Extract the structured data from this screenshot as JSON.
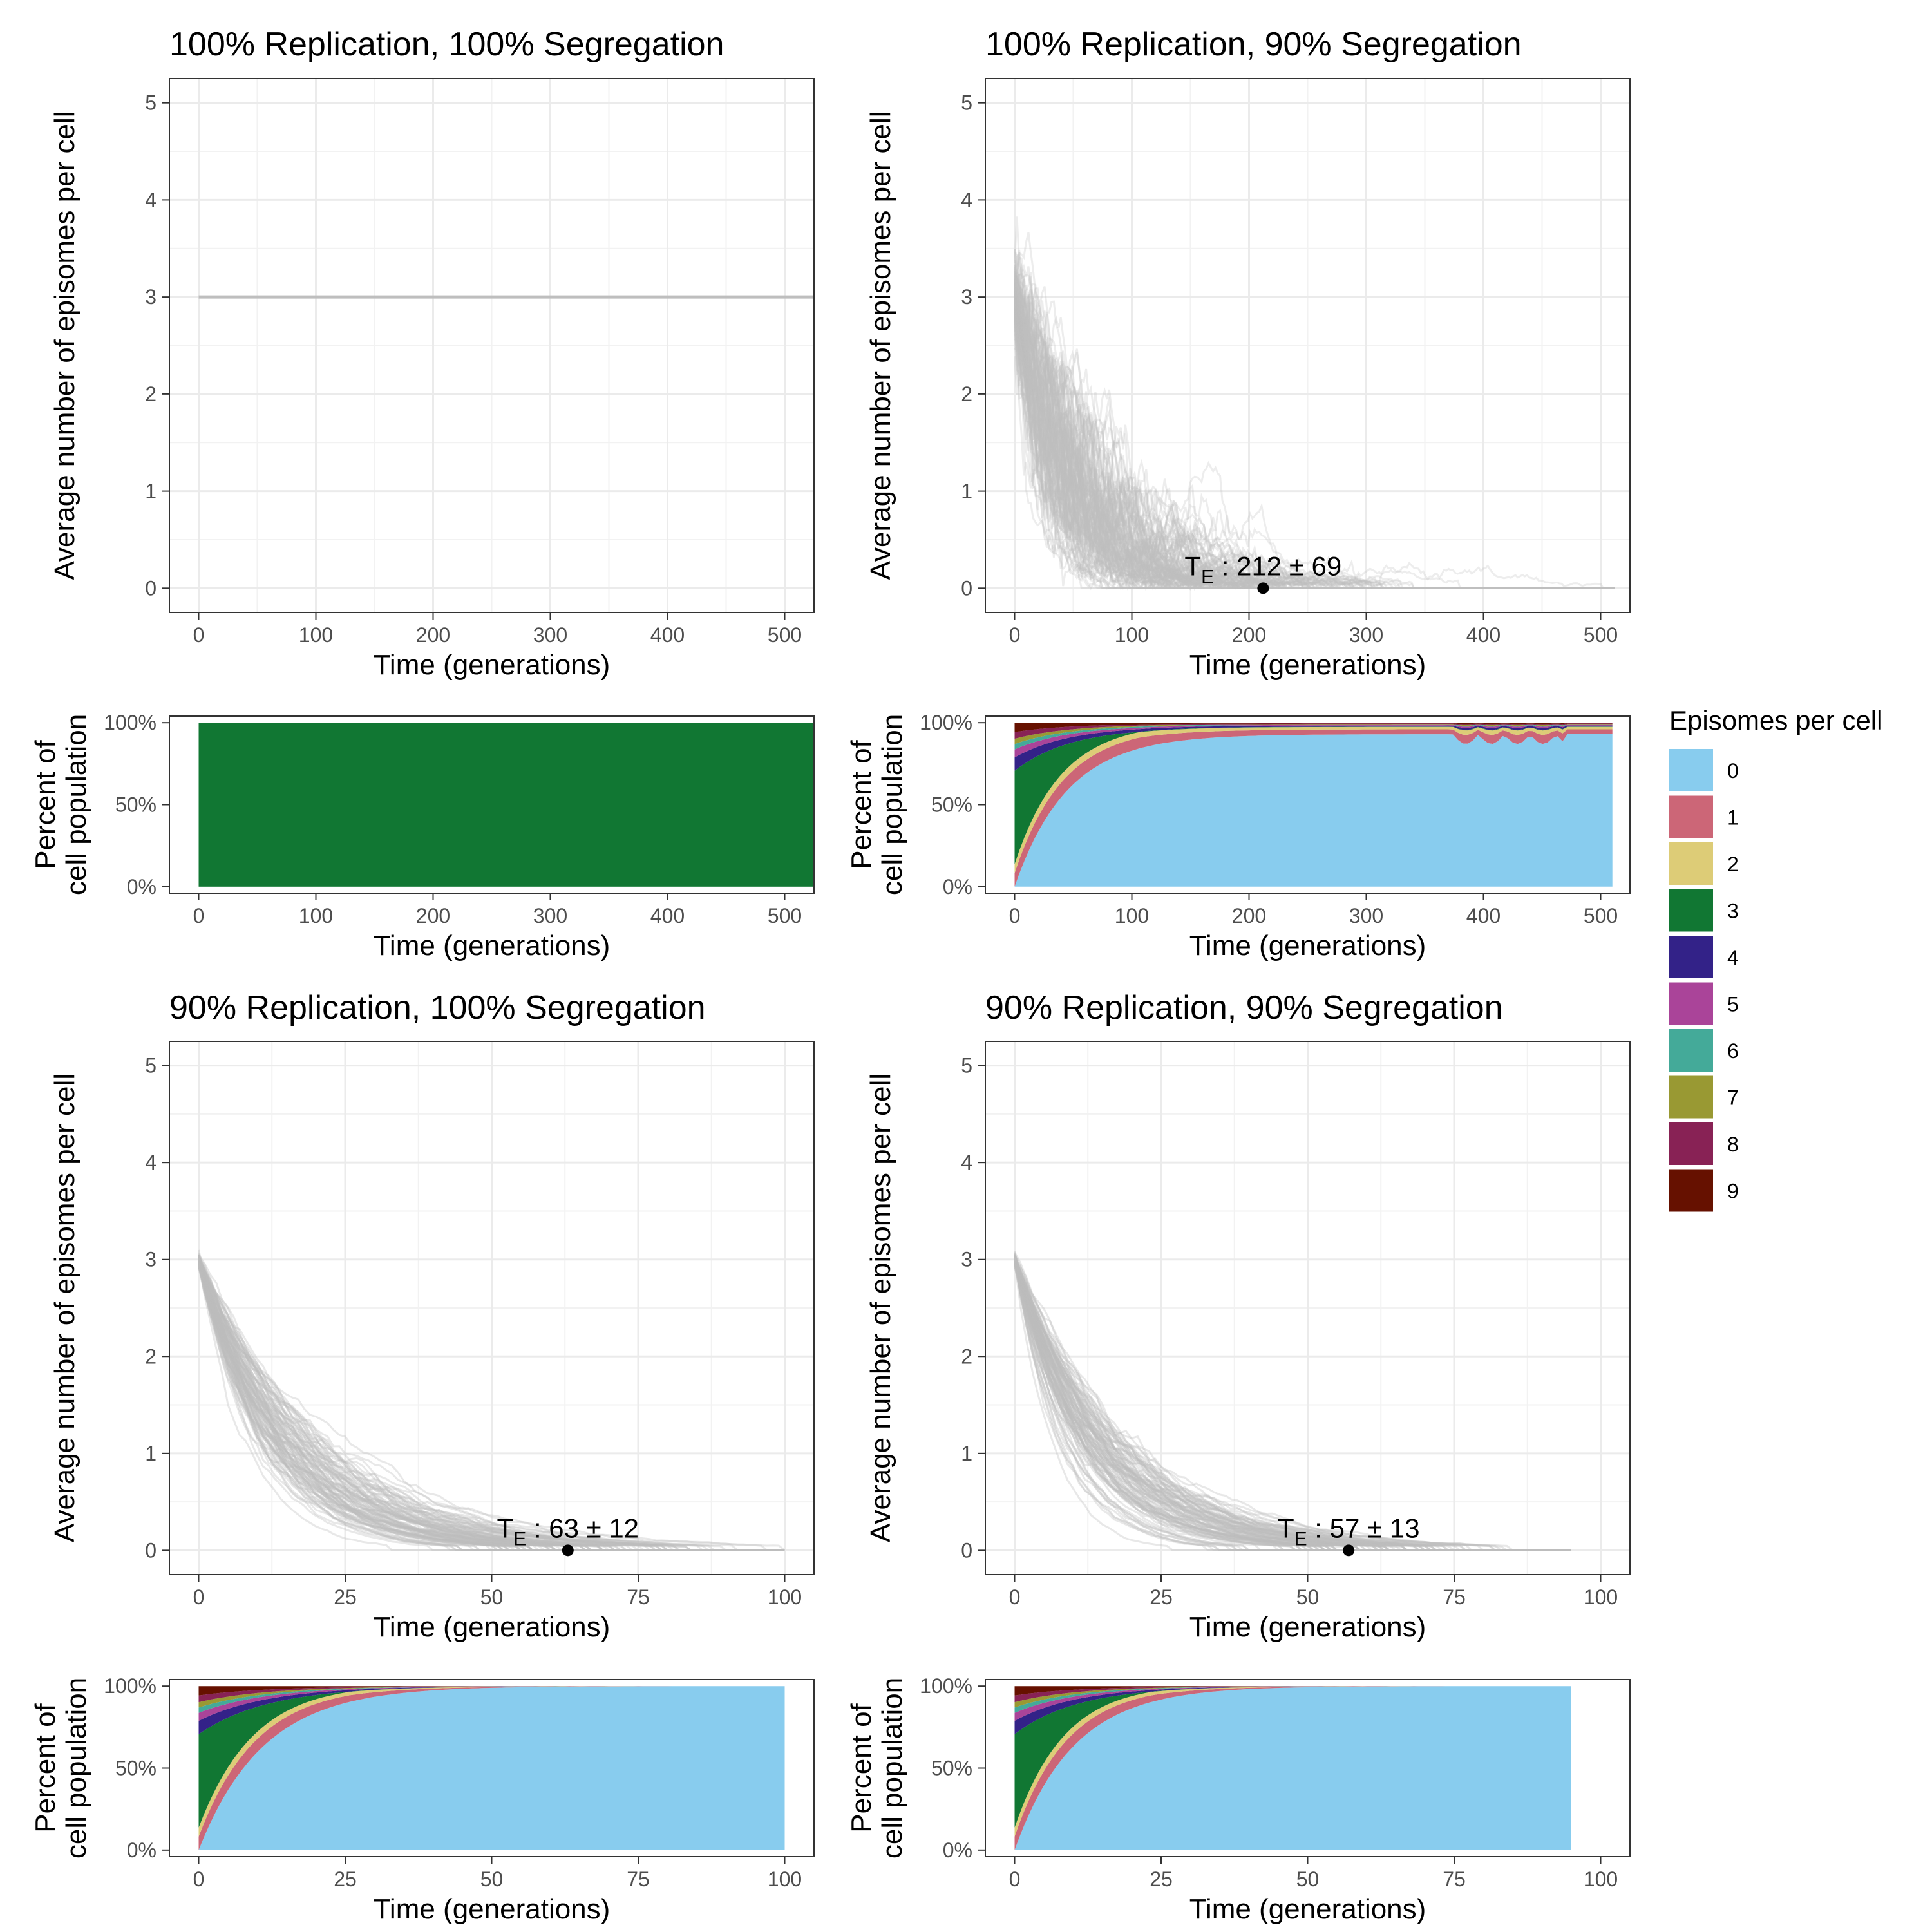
{
  "chart_data": [
    {
      "id": "p1_line",
      "type": "line",
      "title": "100% Replication, 100% Segregation",
      "xlabel": "Time (generations)",
      "ylabel": "Average number of episomes per cell",
      "xlim": [
        -25,
        525
      ],
      "ylim": [
        -0.25,
        5.25
      ],
      "xticks": [
        0,
        100,
        200,
        300,
        400,
        500
      ],
      "yticks": [
        0,
        1,
        2,
        3,
        4,
        5
      ],
      "grid": true,
      "series_summary": {
        "kind": "constant",
        "value": 3,
        "x_end": 525
      }
    },
    {
      "id": "p1_area",
      "type": "area",
      "xlabel": "Time (generations)",
      "ylabel": [
        "Percent of",
        "cell population"
      ],
      "xlim": [
        -25,
        525
      ],
      "ylim": [
        -4,
        104
      ],
      "xticks": [
        0,
        100,
        200,
        300,
        400,
        500
      ],
      "yticks": [
        "0%",
        "50%",
        "100%"
      ],
      "composition": {
        "kind": "constant",
        "category": "3",
        "x_end": 525
      }
    },
    {
      "id": "p2_line",
      "type": "line",
      "title": "100% Replication, 90% Segregation",
      "xlabel": "Time (generations)",
      "ylabel": "Average number of episomes per cell",
      "xlim": [
        -25,
        525
      ],
      "ylim": [
        -0.25,
        5.25
      ],
      "xticks": [
        0,
        100,
        200,
        300,
        400,
        500
      ],
      "yticks": [
        0,
        1,
        2,
        3,
        4,
        5
      ],
      "grid": true,
      "series_summary": {
        "kind": "decay",
        "start": 3,
        "mean_extinction": 212,
        "sd": 69,
        "x_end": 512,
        "trajectories": 130
      },
      "annotation": {
        "label_prefix": "T",
        "label_sub": "E",
        "label_rest": " : 212 ± 69",
        "x": 212,
        "y": 0
      }
    },
    {
      "id": "p2_area",
      "type": "area",
      "xlabel": "Time (generations)",
      "ylabel": [
        "Percent of",
        "cell population"
      ],
      "xlim": [
        -25,
        525
      ],
      "ylim": [
        -4,
        104
      ],
      "xticks": [
        0,
        100,
        200,
        300,
        400,
        500
      ],
      "yticks": [
        "0%",
        "50%",
        "100%"
      ],
      "composition": {
        "kind": "decay",
        "zero_tau": 45,
        "x_end": 510,
        "plateau": 0.93
      }
    },
    {
      "id": "p3_line",
      "type": "line",
      "title": "90% Replication, 100% Segregation",
      "xlabel": "Time (generations)",
      "ylabel": "Average number of episomes per cell",
      "xlim": [
        -5,
        105
      ],
      "ylim": [
        -0.25,
        5.25
      ],
      "xticks": [
        0,
        25,
        50,
        75,
        100
      ],
      "yticks": [
        0,
        1,
        2,
        3,
        4,
        5
      ],
      "grid": true,
      "series_summary": {
        "kind": "decay",
        "start": 3,
        "mean_extinction": 63,
        "sd": 12,
        "x_end": 100,
        "trajectories": 100
      },
      "annotation": {
        "label_prefix": "T",
        "label_sub": "E",
        "label_rest": " : 63 ± 12",
        "x": 63,
        "y": 0
      }
    },
    {
      "id": "p3_area",
      "type": "area",
      "xlabel": "Time (generations)",
      "ylabel": [
        "Percent of",
        "cell population"
      ],
      "xlim": [
        -5,
        105
      ],
      "ylim": [
        -4,
        104
      ],
      "xticks": [
        0,
        25,
        50,
        75,
        100
      ],
      "yticks": [
        "0%",
        "50%",
        "100%"
      ],
      "composition": {
        "kind": "decay",
        "zero_tau": 11,
        "x_end": 100,
        "plateau": 1
      }
    },
    {
      "id": "p4_line",
      "type": "line",
      "title": "90% Replication, 90% Segregation",
      "xlabel": "Time (generations)",
      "ylabel": "Average number of episomes per cell",
      "xlim": [
        -5,
        105
      ],
      "ylim": [
        -0.25,
        5.25
      ],
      "xticks": [
        0,
        25,
        50,
        75,
        100
      ],
      "yticks": [
        0,
        1,
        2,
        3,
        4,
        5
      ],
      "grid": true,
      "series_summary": {
        "kind": "decay",
        "start": 3,
        "mean_extinction": 57,
        "sd": 13,
        "x_end": 95,
        "trajectories": 100
      },
      "annotation": {
        "label_prefix": "T",
        "label_sub": "E",
        "label_rest": " : 57 ± 13",
        "x": 57,
        "y": 0
      }
    },
    {
      "id": "p4_area",
      "type": "area",
      "xlabel": "Time (generations)",
      "ylabel": [
        "Percent of",
        "cell population"
      ],
      "xlim": [
        -5,
        105
      ],
      "ylim": [
        -4,
        104
      ],
      "xticks": [
        0,
        25,
        50,
        75,
        100
      ],
      "yticks": [
        "0%",
        "50%",
        "100%"
      ],
      "composition": {
        "kind": "decay",
        "zero_tau": 10,
        "x_end": 95,
        "plateau": 1
      }
    }
  ],
  "legend": {
    "title": "Episomes per cell",
    "placement": "right",
    "entries": [
      {
        "label": "0",
        "color": "#88CCEE"
      },
      {
        "label": "1",
        "color": "#CC6677"
      },
      {
        "label": "2",
        "color": "#DDCC77"
      },
      {
        "label": "3",
        "color": "#117733"
      },
      {
        "label": "4",
        "color": "#332288"
      },
      {
        "label": "5",
        "color": "#AA4499"
      },
      {
        "label": "6",
        "color": "#44AA99"
      },
      {
        "label": "7",
        "color": "#999933"
      },
      {
        "label": "8",
        "color": "#882255"
      },
      {
        "label": "9",
        "color": "#661100"
      }
    ]
  },
  "colors": {
    "trajectory": "#BEBEBE",
    "grid": "#EBEBEB",
    "point": "#000000"
  }
}
